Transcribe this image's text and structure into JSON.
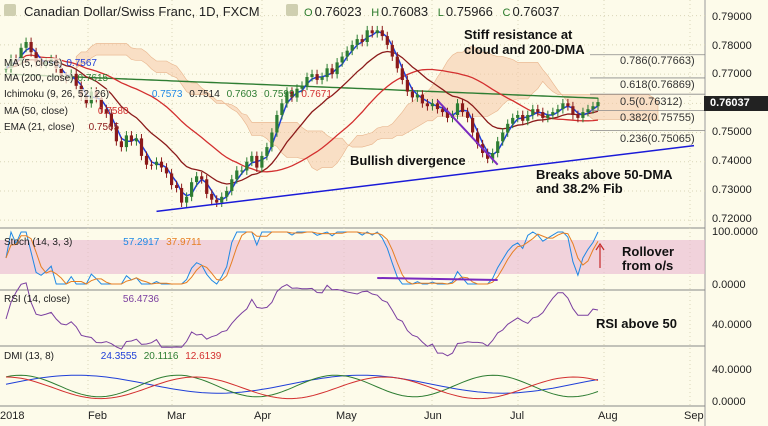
{
  "header": {
    "symbol_title": "Canadian Dollar/Swiss Franc, 1D, FXCM",
    "ohlc": [
      {
        "key": "O",
        "value": "0.76023"
      },
      {
        "key": "H",
        "value": "0.76083"
      },
      {
        "key": "L",
        "value": "0.75966"
      },
      {
        "key": "C",
        "value": "0.76037"
      }
    ]
  },
  "indicators": [
    {
      "name": "MA (5, close)",
      "value": "0.7567",
      "color": "#1f3fd8"
    },
    {
      "name": "MA (200, close)",
      "value": "0.7615",
      "color": "#2e7d32"
    },
    {
      "name": "Ichimoku (9, 26, 52, 26)",
      "values": [
        "0.7573",
        "0.7514",
        "0.7603",
        "0.7599",
        "0.7671"
      ],
      "colors": [
        "#1e88e5",
        "#222222",
        "#2e7d32",
        "#2e7d32",
        "#d32f2f"
      ]
    },
    {
      "name": "MA (50, close)",
      "value": "0.7580",
      "color": "#d32f2f"
    },
    {
      "name": "EMA (21, close)",
      "value": "0.7565",
      "color": "#8b1a1a"
    }
  ],
  "annotations": {
    "resistance": "Stiff resistance at\ncloud and 200-DMA",
    "divergence": "Bullish divergence",
    "breakout": "Breaks above 50-DMA\nand 38.2% Fib",
    "rollover": "Rollover\nfrom o/s",
    "rsi_note": "RSI above 50"
  },
  "fib_levels": [
    {
      "label": "0.786(0.77663)",
      "price": 0.77663
    },
    {
      "label": "0.618(0.76869)",
      "price": 0.76869
    },
    {
      "label": "0.5(0.76312)",
      "price": 0.76312
    },
    {
      "label": "0.382(0.75755)",
      "price": 0.75755
    },
    {
      "label": "0.236(0.75065)",
      "price": 0.75065
    }
  ],
  "price_axis": {
    "ticks": [
      "0.79000",
      "0.78000",
      "0.77000",
      "0.76000",
      "0.75000",
      "0.74000",
      "0.73000",
      "0.72000"
    ],
    "last_price": "0.76037",
    "last_color": "#222222"
  },
  "stoch_panel": {
    "label": "Stoch (14, 3, 3)",
    "k": "57.2917",
    "d": "37.9711",
    "ticks": [
      "100.0000",
      "0.0000"
    ]
  },
  "rsi_panel": {
    "label": "RSI (14, close)",
    "value": "56.4736",
    "ticks": [
      "40.0000"
    ]
  },
  "dmi_panel": {
    "label": "DMI (13, 8)",
    "values": [
      "24.3555",
      "20.1116",
      "12.6139"
    ],
    "ticks": [
      "40.0000",
      "0.0000"
    ]
  },
  "time_axis": [
    "2018",
    "Feb",
    "Mar",
    "Apr",
    "May",
    "Jun",
    "Jul",
    "Aug",
    "Sep"
  ],
  "chart_data": {
    "type": "candlestick",
    "title": "Canadian Dollar/Swiss Franc, 1D, FXCM",
    "ylim": [
      0.718,
      0.794
    ],
    "x_labels": [
      "2018",
      "Feb",
      "Mar",
      "Apr",
      "May",
      "Jun",
      "Jul",
      "Aug",
      "Sep"
    ],
    "close_approx": [
      0.772,
      0.7752,
      0.7745,
      0.779,
      0.781,
      0.7775,
      0.774,
      0.7735,
      0.7742,
      0.7751,
      0.772,
      0.769,
      0.7683,
      0.7701,
      0.766,
      0.7625,
      0.76,
      0.764,
      0.7618,
      0.758,
      0.7565,
      0.752,
      0.747,
      0.745,
      0.749,
      0.747,
      0.748,
      0.742,
      0.739,
      0.7388,
      0.74,
      0.738,
      0.736,
      0.732,
      0.731,
      0.726,
      0.728,
      0.733,
      0.735,
      0.734,
      0.729,
      0.727,
      0.726,
      0.728,
      0.73,
      0.734,
      0.737,
      0.737,
      0.74,
      0.742,
      0.738,
      0.742,
      0.745,
      0.75,
      0.756,
      0.76,
      0.764,
      0.762,
      0.765,
      0.766,
      0.769,
      0.77,
      0.768,
      0.769,
      0.772,
      0.77,
      0.774,
      0.776,
      0.778,
      0.78,
      0.782,
      0.781,
      0.785,
      0.784,
      0.785,
      0.783,
      0.78,
      0.776,
      0.772,
      0.768,
      0.764,
      0.762,
      0.763,
      0.76,
      0.759,
      0.76,
      0.758,
      0.757,
      0.755,
      0.756,
      0.76,
      0.757,
      0.755,
      0.75,
      0.746,
      0.743,
      0.741,
      0.743,
      0.747,
      0.75,
      0.753,
      0.755,
      0.756,
      0.754,
      0.756,
      0.758,
      0.757,
      0.755,
      0.756,
      0.757,
      0.758,
      0.76,
      0.759,
      0.756,
      0.755,
      0.757,
      0.758,
      0.759,
      0.7604
    ],
    "series": [
      {
        "name": "MA (5, close)",
        "color": "#1f3fd8"
      },
      {
        "name": "MA (200, close)",
        "color": "#2e7d32"
      },
      {
        "name": "MA (50, close)",
        "color": "#d32f2f"
      },
      {
        "name": "EMA (21, close)",
        "color": "#8b1a1a"
      }
    ],
    "trendline": [
      [
        0.723,
        0.7455
      ]
    ],
    "divergence_line": [
      [
        0.761,
        0.739
      ]
    ]
  }
}
